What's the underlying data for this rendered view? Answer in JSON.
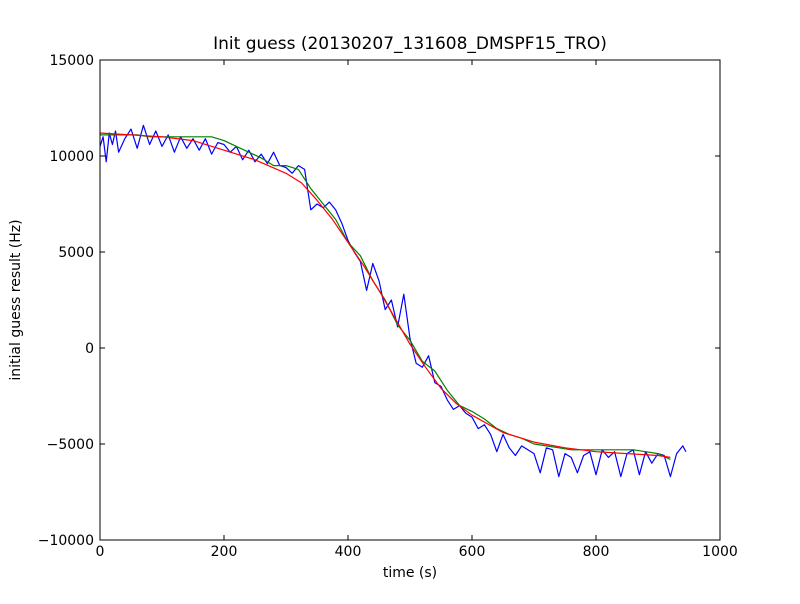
{
  "chart_data": {
    "type": "line",
    "title": "Init guess (20130207_131608_DMSPF15_TRO)",
    "xlabel": "time (s)",
    "ylabel": "initial guess result (Hz)",
    "xlim": [
      0,
      1000
    ],
    "ylim": [
      -10000,
      15000
    ],
    "xticks": [
      0,
      200,
      400,
      600,
      800,
      1000
    ],
    "yticks": [
      -10000,
      -5000,
      0,
      5000,
      10000,
      15000
    ],
    "xtick_labels": [
      "0",
      "200",
      "400",
      "600",
      "800",
      "1000"
    ],
    "ytick_labels": [
      "−10000",
      "−5000",
      "0",
      "5000",
      "10000",
      "15000"
    ],
    "grid": false,
    "legend": "none",
    "series": [
      {
        "color": "#0000ff",
        "style": "noisy-step",
        "x": [
          0,
          5,
          10,
          15,
          20,
          25,
          30,
          40,
          50,
          60,
          70,
          80,
          90,
          100,
          110,
          120,
          130,
          140,
          150,
          160,
          170,
          180,
          190,
          200,
          210,
          220,
          230,
          240,
          250,
          260,
          270,
          280,
          290,
          300,
          310,
          320,
          330,
          340,
          350,
          360,
          370,
          380,
          390,
          400,
          410,
          420,
          430,
          440,
          450,
          460,
          470,
          480,
          490,
          500,
          510,
          520,
          530,
          540,
          550,
          560,
          570,
          580,
          590,
          600,
          610,
          620,
          630,
          640,
          650,
          660,
          670,
          680,
          690,
          700,
          710,
          720,
          730,
          740,
          750,
          760,
          770,
          780,
          790,
          800,
          810,
          820,
          830,
          840,
          850,
          860,
          870,
          880,
          890,
          900,
          910,
          920,
          930,
          940,
          945
        ],
        "y": [
          10500,
          11000,
          9700,
          11200,
          10600,
          11300,
          10200,
          10900,
          11400,
          10400,
          11600,
          10600,
          11300,
          10500,
          11100,
          10200,
          11000,
          10400,
          10900,
          10300,
          10900,
          10100,
          10700,
          10600,
          10200,
          10500,
          9800,
          10300,
          9700,
          10100,
          9600,
          10200,
          9500,
          9400,
          9100,
          9500,
          9300,
          7200,
          7500,
          7300,
          7600,
          7200,
          6500,
          5600,
          5000,
          4500,
          3000,
          4400,
          3500,
          2000,
          2500,
          1100,
          2800,
          500,
          -800,
          -1000,
          -400,
          -1800,
          -2000,
          -2700,
          -3200,
          -3000,
          -3400,
          -3600,
          -4200,
          -4000,
          -4500,
          -5400,
          -4500,
          -5200,
          -5600,
          -5100,
          -5300,
          -5500,
          -6500,
          -5200,
          -5300,
          -6700,
          -5500,
          -5700,
          -6500,
          -5600,
          -5400,
          -6600,
          -5300,
          -5700,
          -5400,
          -6700,
          -5500,
          -5300,
          -6600,
          -5400,
          -6000,
          -5500,
          -5600,
          -6700,
          -5500,
          -5100,
          -5400
        ]
      },
      {
        "color": "#008000",
        "style": "step",
        "x": [
          0,
          20,
          40,
          60,
          80,
          100,
          120,
          140,
          160,
          180,
          200,
          220,
          240,
          260,
          280,
          300,
          320,
          340,
          360,
          380,
          400,
          420,
          440,
          460,
          480,
          500,
          520,
          540,
          560,
          580,
          600,
          620,
          640,
          660,
          680,
          700,
          720,
          740,
          760,
          780,
          800,
          820,
          840,
          860,
          880,
          900,
          920
        ],
        "y": [
          11100,
          11100,
          11100,
          11100,
          11000,
          11000,
          11000,
          11000,
          11000,
          11000,
          10800,
          10500,
          10200,
          9900,
          9500,
          9500,
          9300,
          8300,
          7500,
          6700,
          5500,
          4800,
          3500,
          2500,
          1200,
          400,
          -700,
          -1200,
          -2200,
          -3000,
          -3300,
          -3700,
          -4200,
          -4500,
          -4700,
          -5000,
          -5100,
          -5200,
          -5300,
          -5300,
          -5300,
          -5300,
          -5300,
          -5300,
          -5400,
          -5500,
          -5800
        ]
      },
      {
        "color": "#ff0000",
        "style": "smooth",
        "x": [
          0,
          50,
          100,
          150,
          200,
          250,
          300,
          325,
          350,
          375,
          400,
          425,
          450,
          475,
          500,
          525,
          550,
          575,
          600,
          650,
          700,
          750,
          800,
          850,
          900,
          920
        ],
        "y": [
          11200,
          11100,
          11000,
          10800,
          10300,
          9800,
          9100,
          8600,
          7700,
          6700,
          5500,
          4300,
          3000,
          1600,
          200,
          -1000,
          -2100,
          -2900,
          -3500,
          -4400,
          -4900,
          -5200,
          -5400,
          -5500,
          -5600,
          -5700
        ]
      }
    ]
  }
}
